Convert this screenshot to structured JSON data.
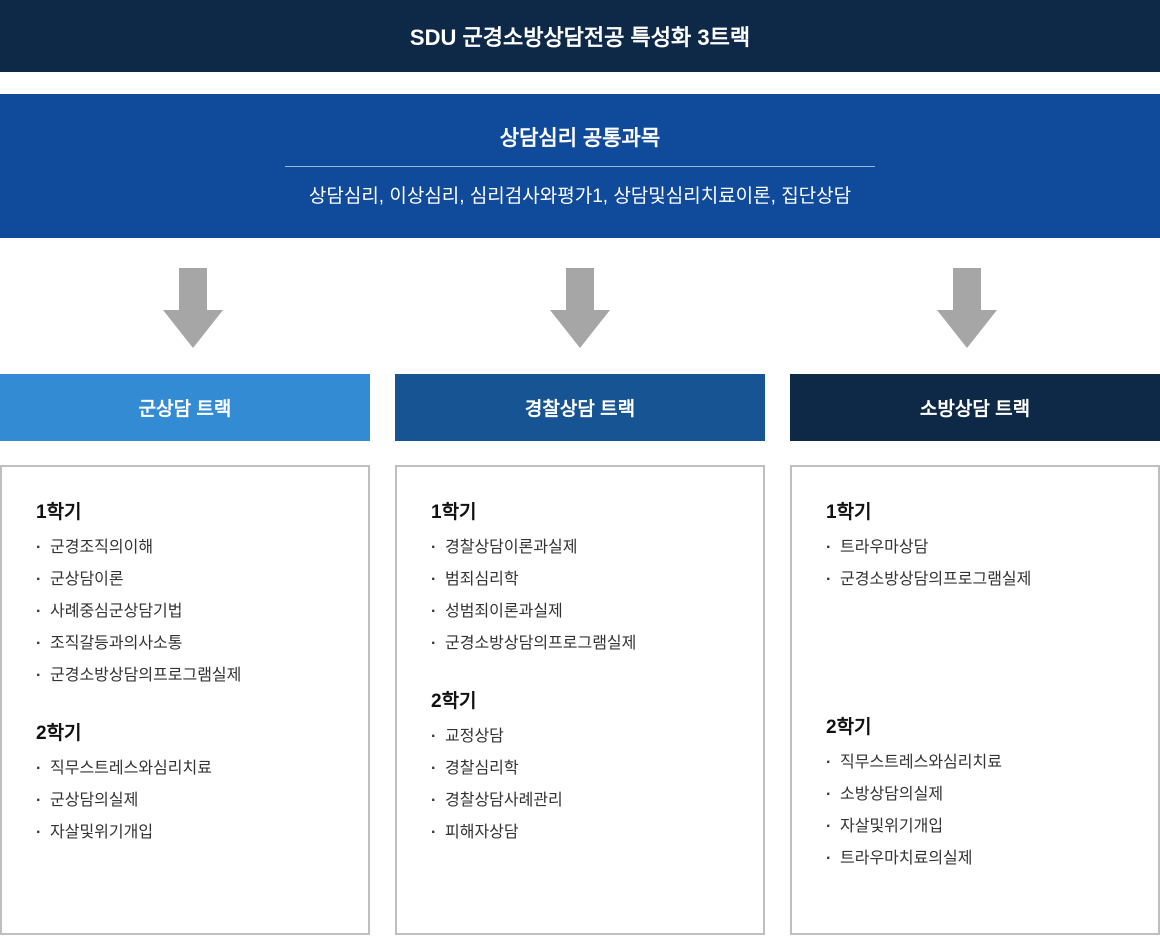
{
  "colors": {
    "header_bg": "#0e2848",
    "header_text": "#ffffff",
    "common_bg": "#0f4a9b",
    "common_text": "#ffffff",
    "divider": "#ffffff",
    "arrow_fill": "#a6a6a6",
    "body_border": "#bfbfbf",
    "sem_title": "#111111"
  },
  "header": {
    "title": "SDU 군경소방상담전공 특성화 3트랙",
    "fontsize": 22
  },
  "common": {
    "title": "상담심리 공통과목",
    "title_fontsize": 21,
    "subtitle": "상담심리, 이상심리, 심리검사와평가1, 상담및심리치료이론, 집단상담",
    "subtitle_fontsize": 19
  },
  "sem_title_fontsize": 19,
  "tracks": [
    {
      "name": "군상담 트랙",
      "head_bg": "#338bd4",
      "semesters": [
        {
          "title": "1학기",
          "courses": [
            "군경조직의이해",
            "군상담이론",
            "사례중심군상담기법",
            "조직갈등과의사소통",
            "군경소방상담의프로그램실제"
          ]
        },
        {
          "title": "2학기",
          "courses": [
            "직무스트레스와심리치료",
            "군상담의실제",
            "자살및위기개입"
          ]
        }
      ]
    },
    {
      "name": "경찰상담 트랙",
      "head_bg": "#175494",
      "semesters": [
        {
          "title": "1학기",
          "courses": [
            "경찰상담이론과실제",
            "범죄심리학",
            "성범죄이론과실제",
            "군경소방상담의프로그램실제"
          ]
        },
        {
          "title": "2학기",
          "courses": [
            "교정상담",
            "경찰심리학",
            "경찰상담사례관리",
            "피해자상담"
          ]
        }
      ]
    },
    {
      "name": "소방상담 트랙",
      "head_bg": "#0e2848",
      "semesters": [
        {
          "title": "1학기",
          "courses": [
            "트라우마상담",
            "군경소방상담의프로그램실제"
          ]
        },
        {
          "title": "2학기",
          "courses": [
            "직무스트레스와심리치료",
            "소방상담의실제",
            "자살및위기개입",
            "트라우마치료의실제"
          ]
        }
      ]
    }
  ]
}
